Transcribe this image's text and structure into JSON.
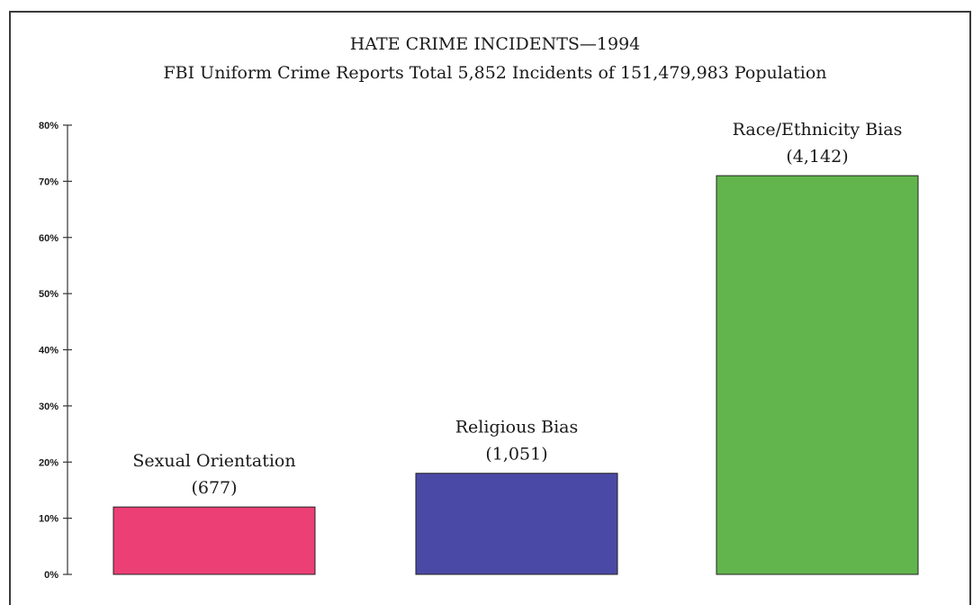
{
  "chart_data": {
    "type": "bar",
    "title": "HATE CRIME INCIDENTS—1994",
    "subtitle": "FBI Uniform Crime Reports Total 5,852 Incidents of 151,479,983 Population",
    "categories": [
      "Sexual Orientation",
      "Religious Bias",
      "Race/Ethnicity Bias"
    ],
    "counts": [
      "(677)",
      "(1,051)",
      "(4,142)"
    ],
    "values": [
      12,
      18,
      71
    ],
    "ylim": [
      0,
      80
    ],
    "yticks": [
      "0%",
      "10%",
      "20%",
      "30%",
      "40%",
      "50%",
      "60%",
      "70%",
      "80%"
    ],
    "colors": [
      "#ec3f76",
      "#4a4aa6",
      "#62b54c"
    ],
    "grid": false
  }
}
